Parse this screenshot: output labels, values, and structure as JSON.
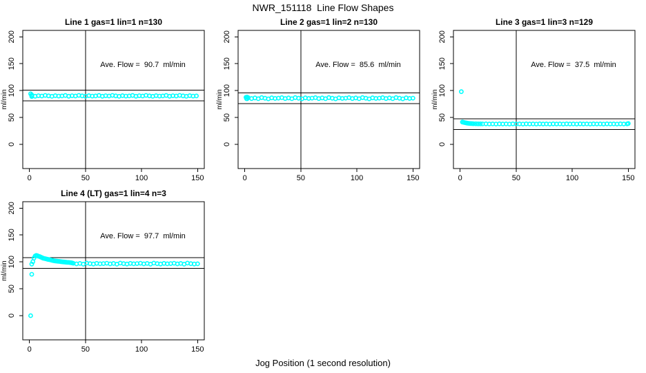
{
  "figure": {
    "title": "NWR_151118  Line Flow Shapes",
    "xlabel": "Jog Position (1 second resolution)",
    "point_color": "#00ffff",
    "axis_color": "#000000",
    "background": "#ffffff"
  },
  "chart_data": [
    {
      "type": "scatter",
      "title": "Line 1 gas=1 lin=1 n=130",
      "annotation": "Ave. Flow =  90.7  ml/min",
      "ave_flow_ml_min": 90.7,
      "n": 130,
      "ylabel": "ml/min",
      "xlim": [
        -6,
        156
      ],
      "ylim": [
        -45,
        212
      ],
      "xticks": [
        0,
        50,
        100,
        150
      ],
      "yticks": [
        0,
        50,
        100,
        150,
        200
      ],
      "vline_x": 50,
      "hlines": [
        100.7,
        80.7
      ],
      "points": [
        [
          1,
          94
        ],
        [
          2,
          92
        ],
        [
          2,
          89
        ],
        [
          2,
          90.9
        ],
        [
          5,
          89.6
        ],
        [
          8,
          90.4
        ],
        [
          11,
          89.9
        ],
        [
          14,
          91.1
        ],
        [
          17,
          90.2
        ],
        [
          20,
          89.4
        ],
        [
          23,
          90.6
        ],
        [
          26,
          89.8
        ],
        [
          29,
          90.0
        ],
        [
          32,
          90.9
        ],
        [
          35,
          89.6
        ],
        [
          38,
          90.4
        ],
        [
          41,
          89.9
        ],
        [
          44,
          91.1
        ],
        [
          47,
          90.2
        ],
        [
          50,
          89.4
        ],
        [
          53,
          90.6
        ],
        [
          56,
          89.8
        ],
        [
          59,
          90.0
        ],
        [
          62,
          90.9
        ],
        [
          65,
          89.6
        ],
        [
          68,
          90.4
        ],
        [
          71,
          89.9
        ],
        [
          74,
          91.1
        ],
        [
          77,
          90.2
        ],
        [
          80,
          89.4
        ],
        [
          83,
          90.6
        ],
        [
          86,
          89.8
        ],
        [
          89,
          90.0
        ],
        [
          92,
          90.9
        ],
        [
          95,
          89.6
        ],
        [
          98,
          90.4
        ],
        [
          101,
          89.9
        ],
        [
          104,
          91.1
        ],
        [
          107,
          90.2
        ],
        [
          110,
          89.4
        ],
        [
          113,
          90.6
        ],
        [
          116,
          89.8
        ],
        [
          119,
          90.0
        ],
        [
          122,
          90.9
        ],
        [
          125,
          89.6
        ],
        [
          128,
          90.4
        ],
        [
          131,
          89.9
        ],
        [
          134,
          91.1
        ],
        [
          137,
          90.2
        ],
        [
          140,
          89.4
        ],
        [
          143,
          90.6
        ],
        [
          146,
          89.8
        ],
        [
          149,
          90.0
        ]
      ]
    },
    {
      "type": "scatter",
      "title": "Line 2 gas=1 lin=2 n=130",
      "annotation": "Ave. Flow =  85.6  ml/min",
      "ave_flow_ml_min": 85.6,
      "n": 130,
      "ylabel": "ml/min",
      "xlim": [
        -6,
        156
      ],
      "ylim": [
        -45,
        212
      ],
      "xticks": [
        0,
        50,
        100,
        150
      ],
      "yticks": [
        0,
        50,
        100,
        150,
        200
      ],
      "vline_x": 50,
      "hlines": [
        95.6,
        75.6
      ],
      "points": [
        [
          1,
          87.5
        ],
        [
          1.5,
          85
        ],
        [
          2,
          88
        ],
        [
          2,
          84.8
        ],
        [
          3,
          86.8
        ],
        [
          6,
          85.2
        ],
        [
          9,
          86.3
        ],
        [
          12,
          84.9
        ],
        [
          15,
          87.0
        ],
        [
          18,
          85.8
        ],
        [
          21,
          84.6
        ],
        [
          24,
          86.5
        ],
        [
          27,
          85.4
        ],
        [
          30,
          85.9
        ],
        [
          33,
          86.8
        ],
        [
          36,
          85.2
        ],
        [
          39,
          86.3
        ],
        [
          42,
          84.9
        ],
        [
          45,
          87.0
        ],
        [
          48,
          85.8
        ],
        [
          51,
          84.6
        ],
        [
          54,
          86.5
        ],
        [
          57,
          85.4
        ],
        [
          60,
          85.9
        ],
        [
          63,
          86.8
        ],
        [
          66,
          85.2
        ],
        [
          69,
          86.3
        ],
        [
          72,
          84.9
        ],
        [
          75,
          87.0
        ],
        [
          78,
          85.8
        ],
        [
          81,
          84.6
        ],
        [
          84,
          86.5
        ],
        [
          87,
          85.4
        ],
        [
          90,
          85.9
        ],
        [
          93,
          86.8
        ],
        [
          96,
          85.2
        ],
        [
          99,
          86.3
        ],
        [
          102,
          84.9
        ],
        [
          105,
          87.0
        ],
        [
          108,
          85.8
        ],
        [
          111,
          84.6
        ],
        [
          114,
          86.5
        ],
        [
          117,
          85.4
        ],
        [
          120,
          85.9
        ],
        [
          123,
          86.8
        ],
        [
          126,
          85.2
        ],
        [
          129,
          86.3
        ],
        [
          132,
          84.9
        ],
        [
          135,
          87.0
        ],
        [
          138,
          85.8
        ],
        [
          141,
          84.6
        ],
        [
          144,
          86.5
        ],
        [
          147,
          85.4
        ],
        [
          150,
          85.9
        ]
      ]
    },
    {
      "type": "scatter",
      "title": "Line 3 gas=1 lin=3 n=129",
      "annotation": "Ave. Flow =  37.5  ml/min",
      "ave_flow_ml_min": 37.5,
      "n": 129,
      "ylabel": "ml/min",
      "xlim": [
        -6,
        156
      ],
      "ylim": [
        -45,
        212
      ],
      "xticks": [
        0,
        50,
        100,
        150
      ],
      "yticks": [
        0,
        50,
        100,
        150,
        200
      ],
      "vline_x": 50,
      "hlines": [
        47.5,
        27.5
      ],
      "points": [
        [
          1,
          98
        ],
        [
          2,
          41.5
        ],
        [
          3,
          41
        ],
        [
          4,
          40.5
        ],
        [
          5,
          40
        ],
        [
          6,
          39.5
        ],
        [
          7,
          39.2
        ],
        [
          8,
          39
        ],
        [
          9,
          38.8
        ],
        [
          10,
          38.6
        ],
        [
          11,
          38.5
        ],
        [
          12,
          38.4
        ],
        [
          14,
          38.3
        ],
        [
          16,
          38.2
        ],
        [
          18,
          38.1
        ],
        [
          20,
          38
        ],
        [
          23,
          38.1
        ],
        [
          26,
          37.9
        ],
        [
          29,
          38
        ],
        [
          32,
          37.8
        ],
        [
          35,
          38.1
        ],
        [
          38,
          37.9
        ],
        [
          41,
          38
        ],
        [
          44,
          37.8
        ],
        [
          47,
          38.1
        ],
        [
          50,
          37.9
        ],
        [
          53,
          38
        ],
        [
          56,
          37.8
        ],
        [
          59,
          38.1
        ],
        [
          62,
          37.9
        ],
        [
          65,
          38
        ],
        [
          68,
          37.8
        ],
        [
          71,
          38.1
        ],
        [
          74,
          37.9
        ],
        [
          77,
          38
        ],
        [
          80,
          37.8
        ],
        [
          83,
          38.1
        ],
        [
          86,
          37.9
        ],
        [
          89,
          38
        ],
        [
          92,
          37.8
        ],
        [
          95,
          38.1
        ],
        [
          98,
          37.9
        ],
        [
          101,
          38
        ],
        [
          104,
          37.8
        ],
        [
          107,
          38.1
        ],
        [
          110,
          37.9
        ],
        [
          113,
          38
        ],
        [
          116,
          37.8
        ],
        [
          119,
          38.1
        ],
        [
          122,
          37.9
        ],
        [
          125,
          38
        ],
        [
          128,
          37.8
        ],
        [
          131,
          38.1
        ],
        [
          134,
          37.9
        ],
        [
          137,
          38
        ],
        [
          140,
          37.8
        ],
        [
          143,
          38.1
        ],
        [
          146,
          37.9
        ],
        [
          149,
          38
        ],
        [
          150,
          38.8
        ]
      ]
    },
    {
      "type": "scatter",
      "title": "Line 4 (LT) gas=1 lin=4 n=3",
      "annotation": "Ave. Flow =  97.7  ml/min",
      "ave_flow_ml_min": 97.7,
      "n": 3,
      "ylabel": "ml/min",
      "xlim": [
        -6,
        156
      ],
      "ylim": [
        -45,
        212
      ],
      "xticks": [
        0,
        50,
        100,
        150
      ],
      "yticks": [
        0,
        50,
        100,
        150,
        200
      ],
      "vline_x": 50,
      "hlines": [
        107.7,
        87.7
      ],
      "points": [
        [
          1,
          0
        ],
        [
          2,
          77
        ],
        [
          2,
          96
        ],
        [
          3,
          100.5
        ],
        [
          4,
          107
        ],
        [
          5,
          111
        ],
        [
          6,
          112
        ],
        [
          7,
          111.5
        ],
        [
          8,
          110.5
        ],
        [
          9,
          110
        ],
        [
          10,
          109
        ],
        [
          11,
          108
        ],
        [
          12,
          107
        ],
        [
          13,
          106.5
        ],
        [
          14,
          106
        ],
        [
          15,
          105.5
        ],
        [
          16,
          105
        ],
        [
          17,
          104.5
        ],
        [
          18,
          104
        ],
        [
          19,
          103.5
        ],
        [
          20,
          103
        ],
        [
          21,
          102.5
        ],
        [
          22,
          102
        ],
        [
          23,
          101.8
        ],
        [
          24,
          101.5
        ],
        [
          25,
          101.2
        ],
        [
          26,
          101
        ],
        [
          27,
          100.8
        ],
        [
          28,
          100.5
        ],
        [
          29,
          100.2
        ],
        [
          30,
          100
        ],
        [
          31,
          99.8
        ],
        [
          32,
          99.5
        ],
        [
          33,
          99.3
        ],
        [
          34,
          99.1
        ],
        [
          35,
          99
        ],
        [
          36,
          98.8
        ],
        [
          37,
          98.5
        ],
        [
          38,
          98.2
        ],
        [
          39,
          97.5
        ],
        [
          42,
          96.4
        ],
        [
          45,
          97.1
        ],
        [
          48,
          95.9
        ],
        [
          51,
          97.8
        ],
        [
          54,
          96.7
        ],
        [
          57,
          96.1
        ],
        [
          60,
          97.3
        ],
        [
          63,
          96.5
        ],
        [
          66,
          96.9
        ],
        [
          69,
          97.5
        ],
        [
          72,
          96.4
        ],
        [
          75,
          97.1
        ],
        [
          78,
          95.9
        ],
        [
          81,
          97.8
        ],
        [
          84,
          96.7
        ],
        [
          87,
          96.1
        ],
        [
          90,
          97.3
        ],
        [
          93,
          96.5
        ],
        [
          96,
          96.9
        ],
        [
          99,
          97.5
        ],
        [
          102,
          96.4
        ],
        [
          105,
          97.1
        ],
        [
          108,
          95.9
        ],
        [
          111,
          97.8
        ],
        [
          114,
          96.7
        ],
        [
          117,
          96.1
        ],
        [
          120,
          97.3
        ],
        [
          123,
          96.5
        ],
        [
          126,
          96.9
        ],
        [
          129,
          97.5
        ],
        [
          132,
          96.4
        ],
        [
          135,
          97.1
        ],
        [
          138,
          95.9
        ],
        [
          141,
          97.8
        ],
        [
          144,
          96.7
        ],
        [
          147,
          96.1
        ],
        [
          150,
          96.5
        ]
      ]
    }
  ]
}
